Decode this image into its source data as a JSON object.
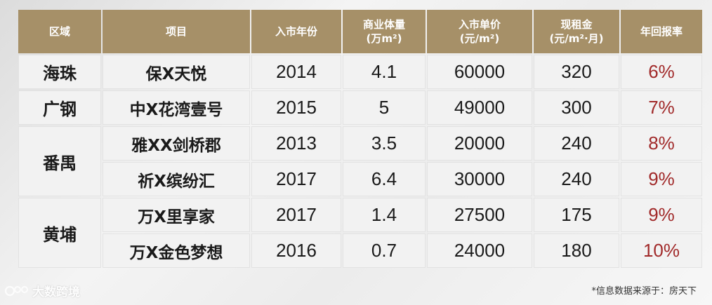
{
  "table": {
    "headers": [
      {
        "line1": "区域",
        "line2": ""
      },
      {
        "line1": "项目",
        "line2": ""
      },
      {
        "line1": "入市年份",
        "line2": ""
      },
      {
        "line1": "商业体量",
        "line2": "(万m²)"
      },
      {
        "line1": "入市单价",
        "line2": "(元/m²)"
      },
      {
        "line1": "现租金",
        "line2": "(元/m²·月)"
      },
      {
        "line1": "年回报率",
        "line2": ""
      }
    ],
    "rows": [
      {
        "district": "海珠",
        "project": "保X天悦",
        "year": "2014",
        "volume": "4.1",
        "price": "60000",
        "rent": "320",
        "return": "6%"
      },
      {
        "district": "广钢",
        "project": "中X花湾壹号",
        "year": "2015",
        "volume": "5",
        "price": "49000",
        "rent": "300",
        "return": "7%"
      },
      {
        "district": "番禺",
        "project": "雅XX剑桥郡",
        "year": "2013",
        "volume": "3.5",
        "price": "20000",
        "rent": "240",
        "return": "8%"
      },
      {
        "district": "",
        "project": "祈X缤纷汇",
        "year": "2017",
        "volume": "6.4",
        "price": "30000",
        "rent": "240",
        "return": "9%"
      },
      {
        "district": "黄埔",
        "project": "万X里享家",
        "year": "2017",
        "volume": "1.4",
        "price": "27500",
        "rent": "175",
        "return": "9%"
      },
      {
        "district": "",
        "project": "万X金色梦想",
        "year": "2016",
        "volume": "0.7",
        "price": "24000",
        "rent": "180",
        "return": "10%"
      }
    ]
  },
  "footer": {
    "watermark": "大数跨境",
    "source": "*信息数据来源于：房天下"
  },
  "colors": {
    "header_bg": "#a69068",
    "cell_bg": "#f2f2f2",
    "return_text": "#a12a2a"
  }
}
